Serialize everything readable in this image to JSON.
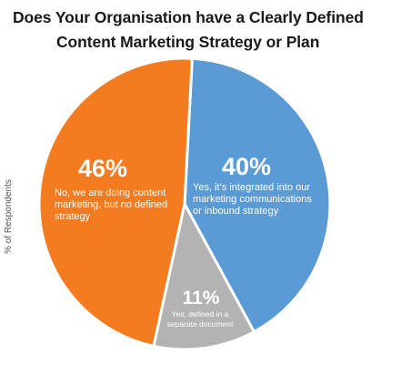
{
  "chart_data": {
    "type": "pie",
    "title_lines": [
      "Does Your Organisation have a Clearly Defined",
      "Content Marketing Strategy or Plan"
    ],
    "ylabel": "% of Respondents",
    "slices": [
      {
        "label": "Yes, it's integrated into our marketing communications or inbound strategy",
        "label_lines": [
          "Yes, it’s integrated into our",
          "marketing communications",
          "or inbound strategy"
        ],
        "value": 40,
        "value_text": "40%",
        "color": "#5b9bd5"
      },
      {
        "label": "Yes, defined in a separate document",
        "label_lines": [
          "Yes, defined in a",
          "separate document"
        ],
        "value": 11,
        "value_text": "11%",
        "color": "#b3b3b3"
      },
      {
        "label": "No, we are doing content marketing, but no defined strategy",
        "label_lines": [
          "No, we are doing content",
          "marketing, but no defined",
          "strategy"
        ],
        "value": 46,
        "value_text": "46%",
        "color": "#f47b20"
      }
    ]
  }
}
